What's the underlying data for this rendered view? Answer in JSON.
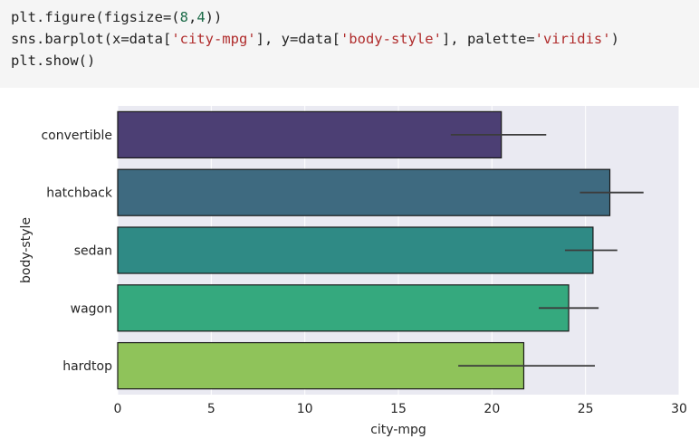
{
  "code": {
    "lines": [
      [
        {
          "t": "plt.figure(figsize=(",
          "k": "plain"
        },
        {
          "t": "8",
          "k": "num"
        },
        {
          "t": ",",
          "k": "plain"
        },
        {
          "t": "4",
          "k": "num"
        },
        {
          "t": "))",
          "k": "plain"
        }
      ],
      [
        {
          "t": "sns.barplot(x=data[",
          "k": "plain"
        },
        {
          "t": "'city-mpg'",
          "k": "str"
        },
        {
          "t": "], y=data[",
          "k": "plain"
        },
        {
          "t": "'body-style'",
          "k": "str"
        },
        {
          "t": "], palette=",
          "k": "plain"
        },
        {
          "t": "'viridis'",
          "k": "str"
        },
        {
          "t": ")",
          "k": "plain"
        }
      ],
      [
        {
          "t": "plt.show()",
          "k": "plain"
        }
      ]
    ]
  },
  "chart_data": {
    "type": "bar",
    "orientation": "horizontal",
    "categories": [
      "convertible",
      "hatchback",
      "sedan",
      "wagon",
      "hardtop"
    ],
    "values": [
      20.5,
      26.3,
      25.4,
      24.1,
      21.7
    ],
    "ci_low": [
      17.8,
      24.7,
      23.9,
      22.5,
      18.2
    ],
    "ci_high": [
      22.9,
      28.1,
      26.7,
      25.7,
      25.5
    ],
    "colors": [
      "#4c3f74",
      "#3e6a80",
      "#2f8a85",
      "#35a97e",
      "#8fc35a"
    ],
    "xlabel": "city-mpg",
    "ylabel": "body-style",
    "xlim": [
      0,
      30
    ],
    "xticks": [
      0,
      5,
      10,
      15,
      20,
      25,
      30
    ],
    "grid": true,
    "background": "#eaeaf2"
  }
}
